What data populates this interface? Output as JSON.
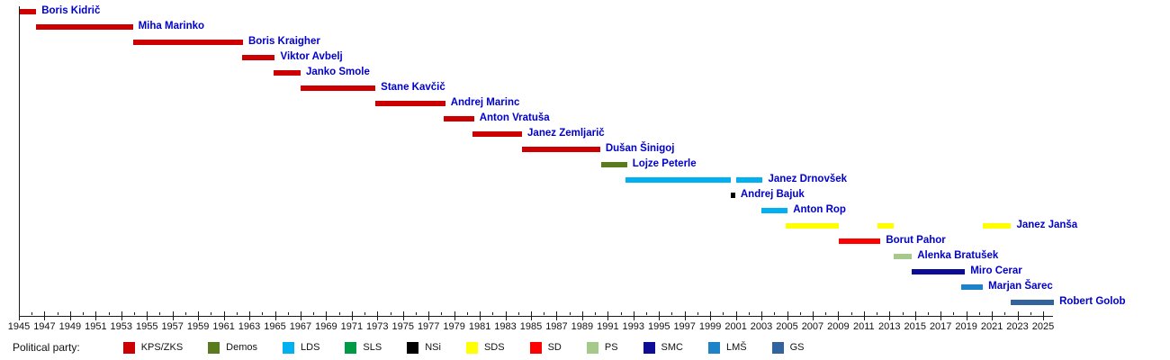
{
  "legend": {
    "title": "Political party:"
  },
  "chart_data": {
    "type": "bar",
    "variant": "gantt-timeline",
    "title": "",
    "xlabel": "",
    "ylabel": "",
    "grid": false,
    "legend_position": "bottom",
    "axis": {
      "min": 1945,
      "max": 2026,
      "major_tick_step": 2,
      "minor_tick_step": 1,
      "tick_labels": [
        1945,
        1947,
        1949,
        1951,
        1953,
        1955,
        1957,
        1959,
        1961,
        1963,
        1965,
        1967,
        1969,
        1971,
        1973,
        1975,
        1977,
        1979,
        1981,
        1983,
        1985,
        1987,
        1989,
        1991,
        1993,
        1995,
        1997,
        1999,
        2001,
        2003,
        2005,
        2007,
        2009,
        2011,
        2013,
        2015,
        2017,
        2019,
        2021,
        2023,
        2025
      ]
    },
    "label_color": "#0000cc",
    "parties": [
      {
        "id": "kps-zks",
        "label": "KPS/ZKS",
        "color": "#cc0000"
      },
      {
        "id": "demos",
        "label": "Demos",
        "color": "#5a7a1e"
      },
      {
        "id": "lds",
        "label": "LDS",
        "color": "#00b0f0"
      },
      {
        "id": "sls",
        "label": "SLS",
        "color": "#009a44"
      },
      {
        "id": "nsi",
        "label": "NSi",
        "color": "#000000"
      },
      {
        "id": "sds",
        "label": "SDS",
        "color": "#ffff00"
      },
      {
        "id": "sd",
        "label": "SD",
        "color": "#ff0000"
      },
      {
        "id": "ps",
        "label": "PS",
        "color": "#a5c98a"
      },
      {
        "id": "smc",
        "label": "SMC",
        "color": "#0c0c96"
      },
      {
        "id": "lms",
        "label": "LMŠ",
        "color": "#1e82c8"
      },
      {
        "id": "gs",
        "label": "GS",
        "color": "#33639c"
      }
    ],
    "people": [
      {
        "name": "Boris Kidrič",
        "party": "KPS/ZKS",
        "terms": [
          [
            1945.1,
            1946.35
          ]
        ]
      },
      {
        "name": "Miha Marinko",
        "party": "KPS/ZKS",
        "terms": [
          [
            1946.35,
            1953.9
          ]
        ]
      },
      {
        "name": "Boris Kraigher",
        "party": "KPS/ZKS",
        "terms": [
          [
            1953.9,
            1962.5
          ]
        ]
      },
      {
        "name": "Viktor Avbelj",
        "party": "KPS/ZKS",
        "terms": [
          [
            1962.4,
            1965.0
          ]
        ]
      },
      {
        "name": "Janko Smole",
        "party": "KPS/ZKS",
        "terms": [
          [
            1964.9,
            1967.0
          ]
        ]
      },
      {
        "name": "Stane Kavčič",
        "party": "KPS/ZKS",
        "terms": [
          [
            1967.0,
            1972.85
          ]
        ]
      },
      {
        "name": "Andrej Marinc",
        "party": "KPS/ZKS",
        "terms": [
          [
            1972.85,
            1978.3
          ]
        ]
      },
      {
        "name": "Anton Vratuša",
        "party": "KPS/ZKS",
        "terms": [
          [
            1978.2,
            1980.55
          ]
        ]
      },
      {
        "name": "Janez Zemljarič",
        "party": "KPS/ZKS",
        "terms": [
          [
            1980.45,
            1984.3
          ]
        ]
      },
      {
        "name": "Dušan Šinigoj",
        "party": "KPS/ZKS",
        "terms": [
          [
            1984.3,
            1990.4
          ]
        ]
      },
      {
        "name": "Lojze Peterle",
        "party": "Demos",
        "terms": [
          [
            1990.5,
            1992.5
          ]
        ]
      },
      {
        "name": "Janez Drnovšek",
        "party": "LDS",
        "terms": [
          [
            1992.4,
            2000.6
          ],
          [
            2001.0,
            2003.1
          ]
        ]
      },
      {
        "name": "Andrej Bajuk",
        "party": "NSi",
        "terms": [
          [
            2000.6,
            2000.95
          ]
        ]
      },
      {
        "name": "Anton Rop",
        "party": "LDS",
        "terms": [
          [
            2003.0,
            2005.05
          ]
        ]
      },
      {
        "name": "Janez Janša",
        "party": "SDS",
        "terms": [
          [
            2004.9,
            2009.05
          ],
          [
            2012.1,
            2013.35
          ],
          [
            2020.3,
            2022.5
          ]
        ]
      },
      {
        "name": "Borut Pahor",
        "party": "SD",
        "terms": [
          [
            2009.05,
            2012.3
          ]
        ]
      },
      {
        "name": "Alenka Bratušek",
        "party": "PS",
        "terms": [
          [
            2013.3,
            2014.75
          ]
        ]
      },
      {
        "name": "Miro Cerar",
        "party": "SMC",
        "terms": [
          [
            2014.75,
            2018.9
          ]
        ]
      },
      {
        "name": "Marjan Šarec",
        "party": "LMŠ",
        "terms": [
          [
            2018.6,
            2020.3
          ]
        ]
      },
      {
        "name": "Robert Golob",
        "party": "GS",
        "terms": [
          [
            2022.5,
            2025.85
          ]
        ]
      }
    ]
  }
}
